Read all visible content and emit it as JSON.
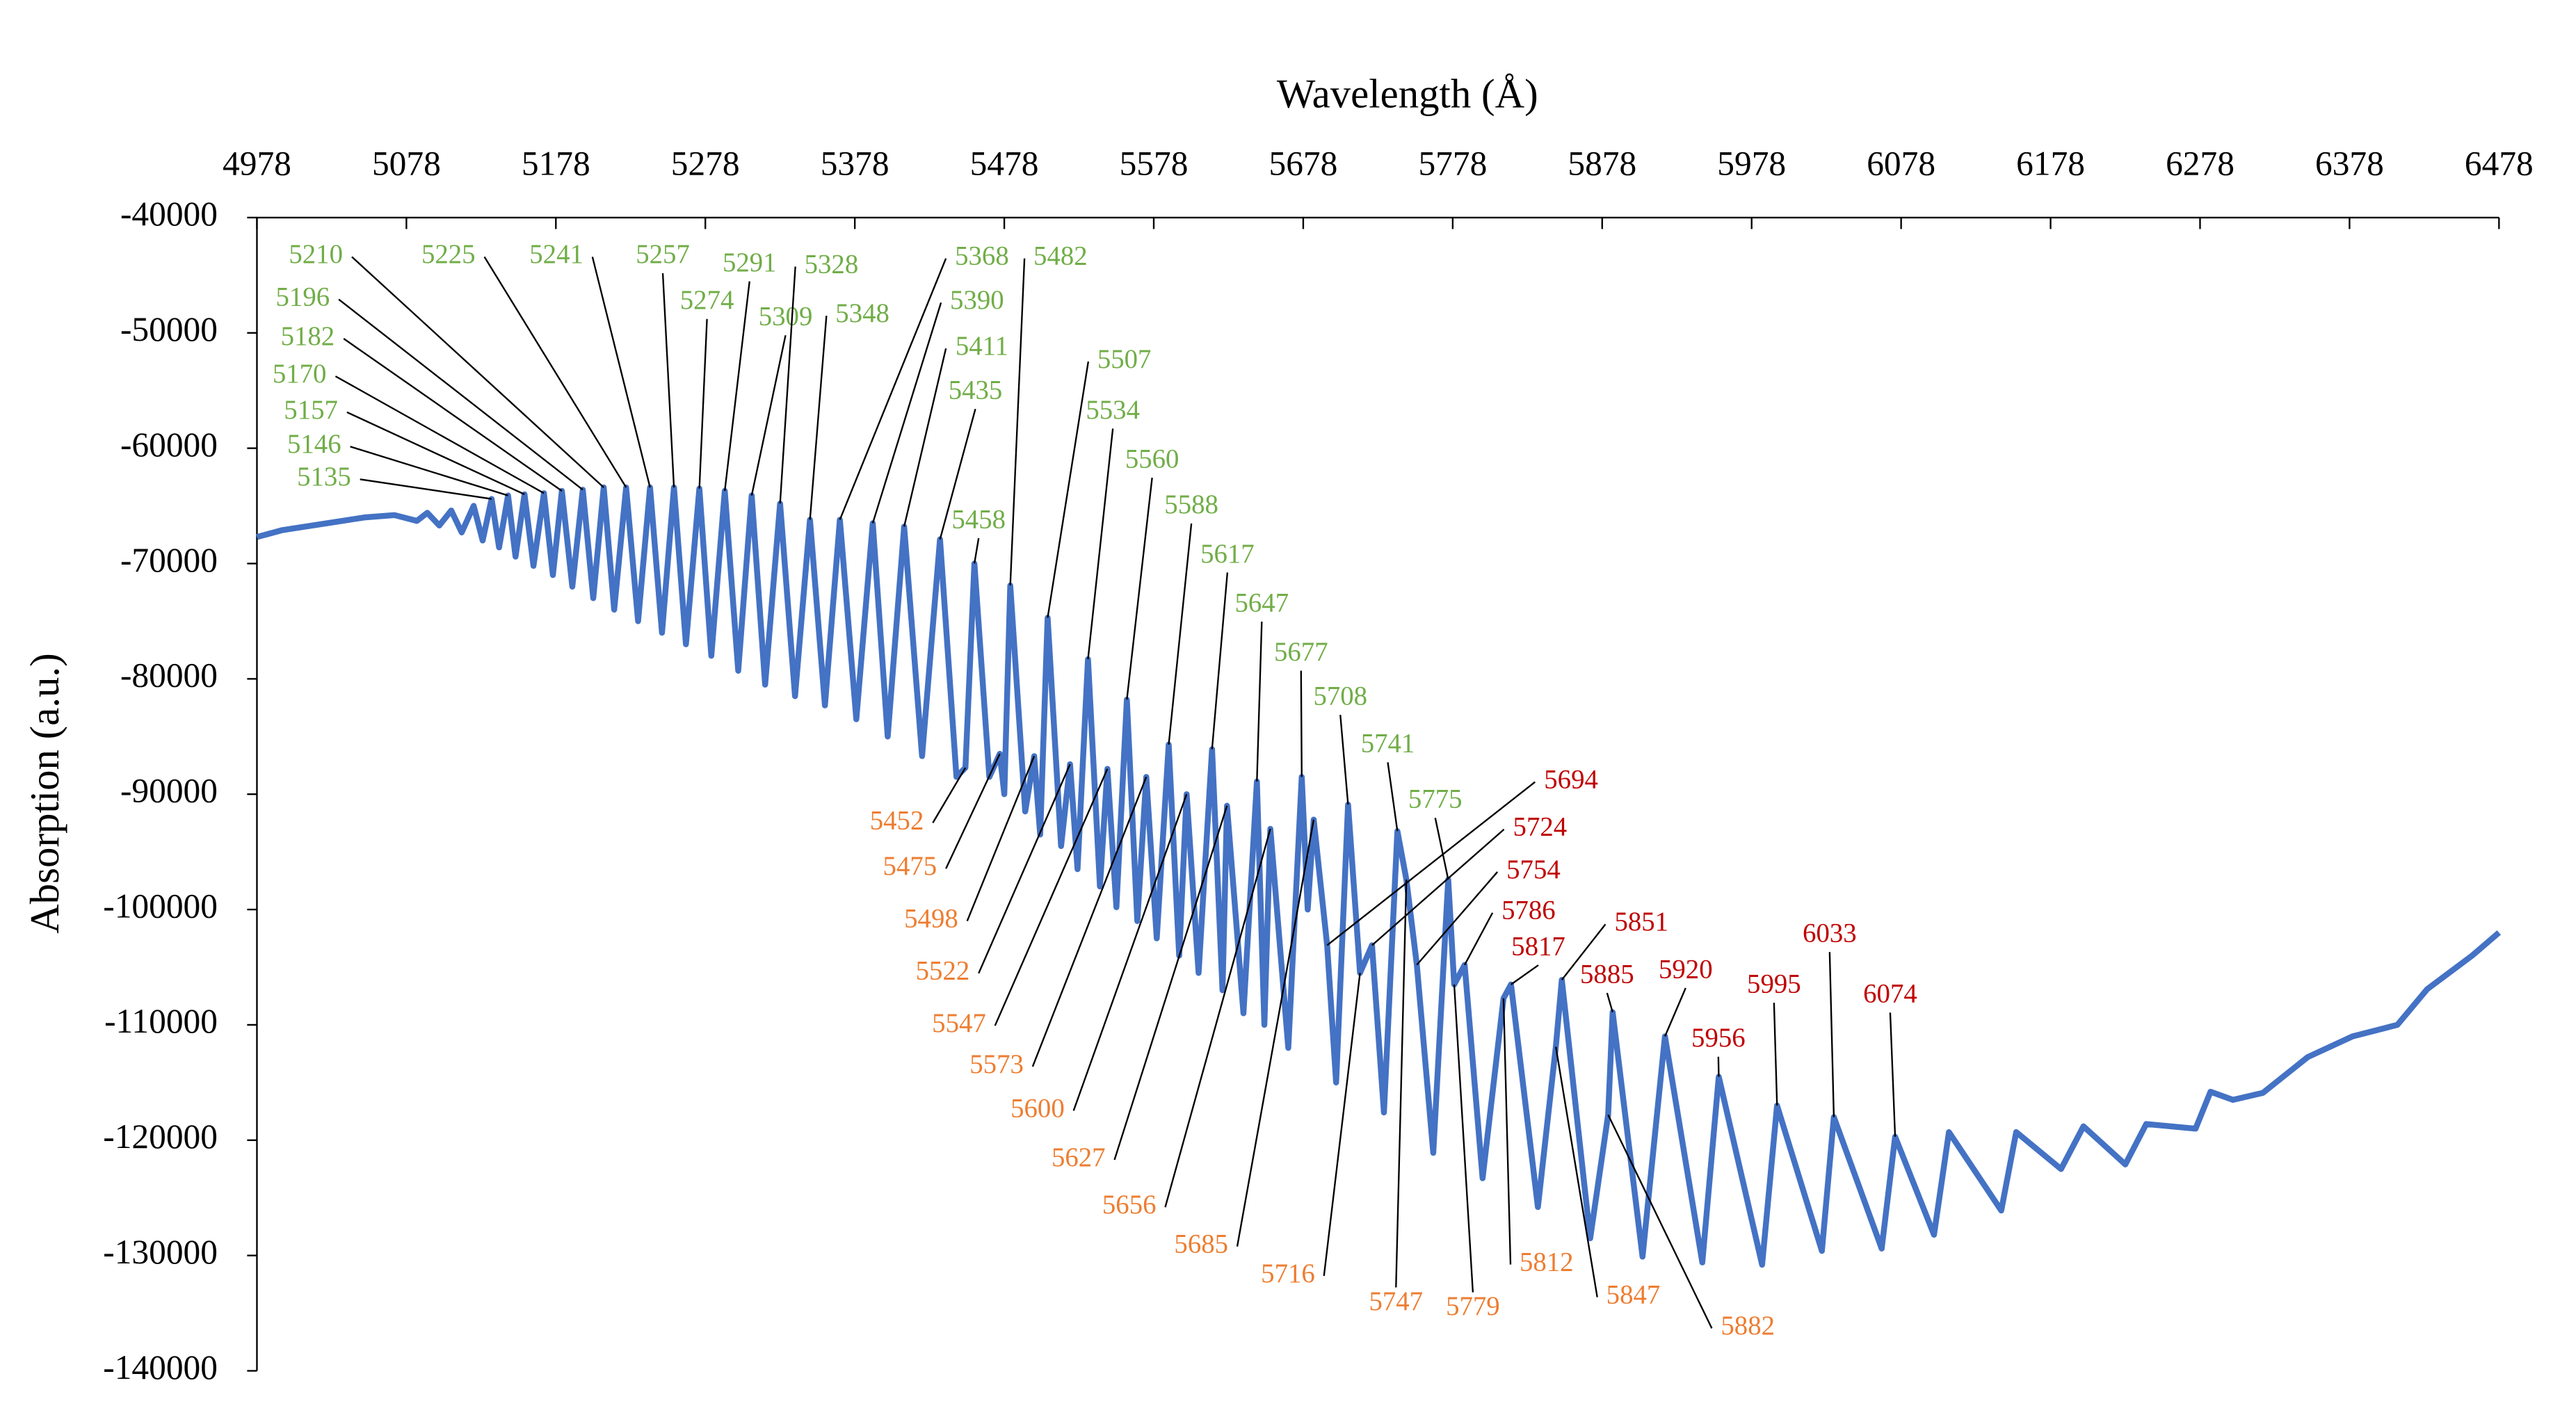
{
  "chart_data": {
    "type": "line",
    "x_label": "Wavelength (Å)",
    "y_label": "Absorption (a.u.)",
    "xlim": [
      4978,
      6478
    ],
    "xticks": [
      4978,
      5078,
      5178,
      5278,
      5378,
      5478,
      5578,
      5678,
      5778,
      5878,
      5978,
      6078,
      6178,
      6278,
      6378,
      6478
    ],
    "ylim": [
      -140000,
      -40000
    ],
    "yticks": [
      -40000,
      -50000,
      -60000,
      -70000,
      -80000,
      -90000,
      -100000,
      -110000,
      -120000,
      -130000,
      -140000
    ],
    "color": "#4472c4",
    "x": [
      4978,
      4995,
      5010,
      5030,
      5050,
      5070,
      5085,
      5092,
      5100,
      5108,
      5115,
      5123,
      5129,
      5135,
      5140,
      5146,
      5151,
      5157,
      5163,
      5170,
      5176,
      5182,
      5189,
      5196,
      5203,
      5210,
      5217,
      5225,
      5233,
      5241,
      5249,
      5257,
      5265,
      5274,
      5282,
      5291,
      5300,
      5309,
      5318,
      5328,
      5338,
      5348,
      5358,
      5368,
      5379,
      5390,
      5400,
      5411,
      5423,
      5435,
      5446,
      5452,
      5458,
      5468,
      5475,
      5478,
      5482,
      5492,
      5498,
      5502,
      5507,
      5516,
      5522,
      5527,
      5534,
      5542,
      5547,
      5553,
      5560,
      5567,
      5573,
      5580,
      5588,
      5595,
      5600,
      5608,
      5617,
      5624,
      5627,
      5638,
      5647,
      5652,
      5656,
      5668,
      5677,
      5681,
      5685,
      5694,
      5700,
      5708,
      5716,
      5724,
      5732,
      5741,
      5747,
      5754,
      5765,
      5775,
      5779,
      5786,
      5798,
      5812,
      5817,
      5835,
      5847,
      5851,
      5870,
      5882,
      5885,
      5905,
      5920,
      5945,
      5956,
      5985,
      5995,
      6025,
      6033,
      6065,
      6074,
      6100,
      6110,
      6145,
      6155,
      6185,
      6200,
      6228,
      6242,
      6275,
      6285,
      6300,
      6320,
      6350,
      6380,
      6410,
      6430,
      6460,
      6478
    ],
    "values": [
      -67700,
      -67100,
      -66800,
      -66400,
      -66000,
      -65800,
      -66300,
      -65600,
      -66700,
      -65400,
      -67300,
      -65000,
      -68000,
      -64400,
      -68600,
      -64100,
      -69400,
      -64000,
      -70200,
      -63900,
      -71000,
      -63700,
      -72000,
      -63600,
      -73000,
      -63400,
      -74000,
      -63400,
      -75000,
      -63400,
      -76000,
      -63400,
      -77000,
      -63500,
      -78000,
      -63700,
      -79300,
      -64100,
      -80500,
      -64800,
      -81500,
      -66200,
      -82300,
      -66200,
      -83500,
      -66500,
      -85000,
      -66800,
      -86700,
      -67900,
      -88500,
      -87700,
      -70000,
      -88500,
      -86500,
      -90000,
      -71900,
      -91500,
      -86700,
      -93500,
      -74700,
      -94500,
      -87400,
      -96500,
      -78300,
      -98000,
      -87800,
      -99800,
      -81800,
      -101000,
      -88500,
      -102500,
      -85700,
      -104000,
      -90000,
      -105500,
      -86100,
      -107000,
      -91000,
      -109000,
      -88900,
      -110000,
      -93000,
      -112000,
      -88500,
      -100000,
      -92200,
      -103100,
      -115000,
      -90900,
      -105500,
      -103100,
      -117600,
      -93200,
      -97400,
      -104800,
      -121100,
      -97400,
      -106500,
      -104800,
      -123300,
      -107700,
      -106500,
      -125800,
      -111900,
      -106100,
      -128500,
      -117800,
      -108900,
      -130100,
      -111000,
      -130600,
      -114500,
      -130800,
      -117000,
      -129600,
      -118000,
      -129400,
      -119700,
      -128200,
      -119300,
      -126100,
      -119300,
      -122500,
      -118800,
      -122100,
      -118600,
      -119000,
      -115800,
      -116500,
      -115900,
      -112800,
      -111000,
      -110000,
      -106900,
      -104000,
      -102000
    ],
    "annotations": [
      {
        "color": "#70ad47",
        "labels": [
          5135,
          5146,
          5157,
          5170,
          5182,
          5196,
          5210,
          5225,
          5241,
          5257,
          5274,
          5291,
          5309,
          5328,
          5348,
          5368,
          5390,
          5411,
          5435,
          5458,
          5482,
          5507,
          5534,
          5560,
          5588,
          5617,
          5647,
          5677,
          5708,
          5741,
          5775
        ]
      },
      {
        "color": "#ed7d31",
        "labels": [
          5452,
          5475,
          5498,
          5522,
          5547,
          5573,
          5600,
          5627,
          5656,
          5685,
          5716,
          5747,
          5779,
          5812,
          5847,
          5882
        ]
      },
      {
        "color": "#c00000",
        "labels": [
          5694,
          5724,
          5754,
          5786,
          5817,
          5851,
          5885,
          5920,
          5956,
          5995,
          6033,
          6074
        ]
      }
    ]
  }
}
